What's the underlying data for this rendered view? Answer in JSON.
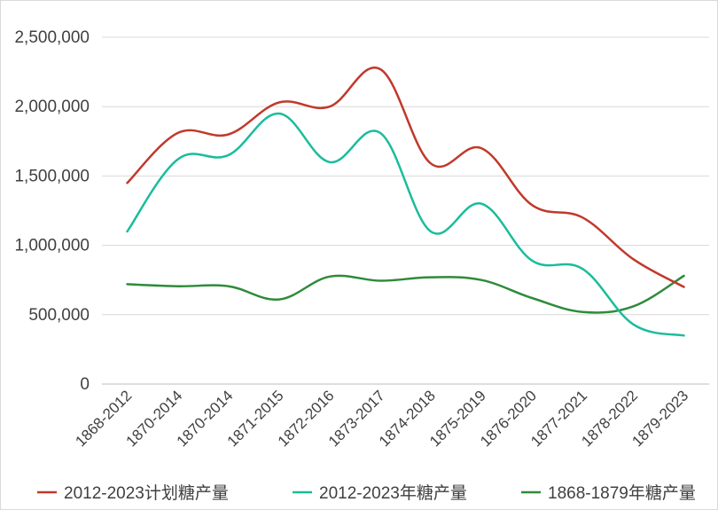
{
  "chart_data": {
    "type": "line",
    "title": "",
    "xlabel": "",
    "ylabel": "",
    "categories": [
      "1868-2012",
      "1870-2014",
      "1870-2014",
      "1871-2015",
      "1872-2016",
      "1873-2017",
      "1874-2018",
      "1875-2019",
      "1876-2020",
      "1877-2021",
      "1878-2022",
      "1879-2023"
    ],
    "y_ticks": [
      "0",
      "500,000",
      "1,000,000",
      "1,500,000",
      "2,000,000",
      "2,500,000"
    ],
    "ylim": [
      0,
      2500000
    ],
    "grid": "horizontal",
    "legend_position": "bottom",
    "series": [
      {
        "name": "2012-2023计划糖产量",
        "color": "#c0392b",
        "values": [
          1450000,
          1810000,
          1800000,
          2030000,
          2000000,
          2270000,
          1590000,
          1700000,
          1290000,
          1200000,
          900000,
          700000
        ]
      },
      {
        "name": "2012-2023年糖产量",
        "color": "#1abc9c",
        "values": [
          1100000,
          1620000,
          1650000,
          1950000,
          1600000,
          1810000,
          1100000,
          1300000,
          890000,
          830000,
          430000,
          350000
        ]
      },
      {
        "name": "1868-1879年糖产量",
        "color": "#2e8b3a",
        "values": [
          720000,
          705000,
          705000,
          610000,
          775000,
          745000,
          770000,
          750000,
          620000,
          520000,
          560000,
          780000
        ]
      }
    ]
  }
}
